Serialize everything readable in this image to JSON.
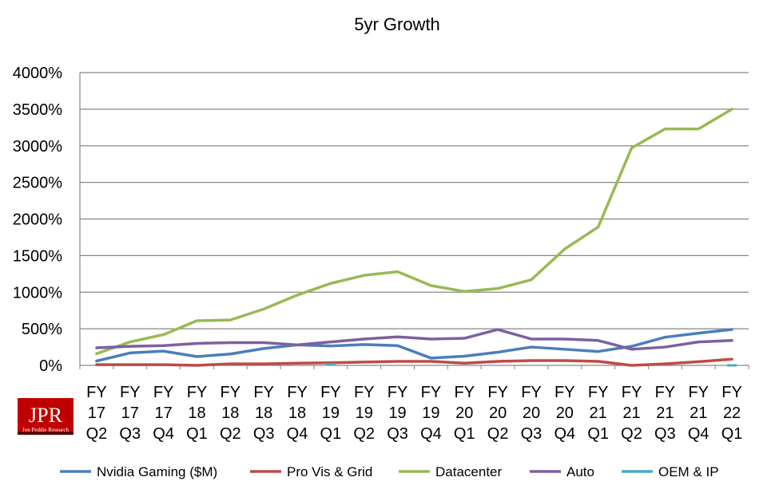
{
  "logo": {
    "main": "JPR",
    "sub": "Jon Peddie Research",
    "color": "#c00000"
  },
  "chart_data": {
    "type": "line",
    "title": "5yr Growth",
    "xlabel": "",
    "ylabel": "",
    "categories": [
      [
        "FY",
        "17",
        "Q2"
      ],
      [
        "FY",
        "17",
        "Q3"
      ],
      [
        "FY",
        "17",
        "Q4"
      ],
      [
        "FY",
        "18",
        "Q1"
      ],
      [
        "FY",
        "18",
        "Q2"
      ],
      [
        "FY",
        "18",
        "Q3"
      ],
      [
        "FY",
        "18",
        "Q4"
      ],
      [
        "FY",
        "19",
        "Q1"
      ],
      [
        "FY",
        "19",
        "Q2"
      ],
      [
        "FY",
        "19",
        "Q3"
      ],
      [
        "FY",
        "19",
        "Q4"
      ],
      [
        "FY",
        "20",
        "Q1"
      ],
      [
        "FY",
        "20",
        "Q2"
      ],
      [
        "FY",
        "20",
        "Q3"
      ],
      [
        "FY",
        "20",
        "Q4"
      ],
      [
        "FY",
        "21",
        "Q1"
      ],
      [
        "FY",
        "21",
        "Q2"
      ],
      [
        "FY",
        "21",
        "Q3"
      ],
      [
        "FY",
        "21",
        "Q4"
      ],
      [
        "FY",
        "22",
        "Q1"
      ]
    ],
    "ylim": [
      0,
      4000
    ],
    "yticks": [
      "0%",
      "500%",
      "1000%",
      "1500%",
      "2000%",
      "2500%",
      "3000%",
      "3500%",
      "4000%"
    ],
    "grid": true,
    "legend_position": "bottom",
    "series": [
      {
        "name": "Nvidia Gaming ($M)",
        "color": "#4a7ebb",
        "values": [
          60,
          170,
          195,
          120,
          155,
          230,
          280,
          265,
          285,
          270,
          100,
          125,
          180,
          250,
          220,
          190,
          260,
          385,
          440,
          490
        ]
      },
      {
        "name": "Pro Vis & Grid",
        "color": "#be4b48",
        "values": [
          10,
          10,
          10,
          0,
          20,
          20,
          30,
          35,
          45,
          55,
          55,
          30,
          55,
          65,
          65,
          55,
          0,
          20,
          50,
          85
        ]
      },
      {
        "name": "Datacenter",
        "color": "#98b954",
        "values": [
          160,
          320,
          420,
          610,
          620,
          770,
          960,
          1120,
          1230,
          1280,
          1090,
          1010,
          1050,
          1170,
          1590,
          1890,
          2970,
          3230,
          3230,
          3500
        ]
      },
      {
        "name": "Auto",
        "color": "#7d60a0",
        "values": [
          240,
          260,
          270,
          300,
          310,
          310,
          280,
          320,
          360,
          390,
          360,
          370,
          490,
          360,
          360,
          340,
          220,
          250,
          320,
          340
        ]
      },
      {
        "name": "OEM & IP",
        "color": "#46aac5",
        "values": [
          null,
          null,
          null,
          null,
          null,
          null,
          null,
          15,
          null,
          null,
          null,
          null,
          null,
          null,
          null,
          null,
          null,
          null,
          null,
          0
        ]
      }
    ]
  }
}
